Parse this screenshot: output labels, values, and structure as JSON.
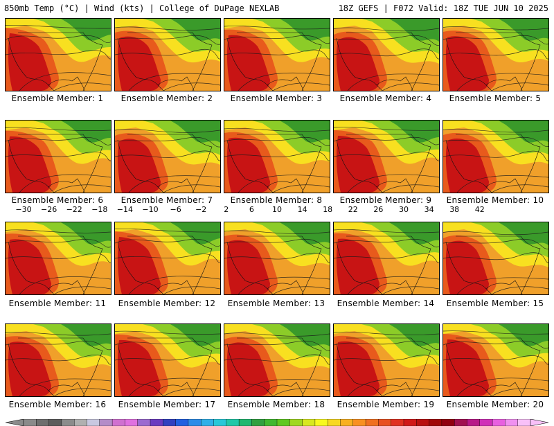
{
  "header": {
    "title_left": "850mb Temp (°C) | Wind (kts) | College of DuPage NEXLAB",
    "title_right": "18Z GEFS | F072 Valid: 18Z TUE JUN 10 2025"
  },
  "members": [
    {
      "label": "Ensemble Member: 1"
    },
    {
      "label": "Ensemble Member: 2"
    },
    {
      "label": "Ensemble Member: 3"
    },
    {
      "label": "Ensemble Member: 4"
    },
    {
      "label": "Ensemble Member: 5"
    },
    {
      "label": "Ensemble Member: 6"
    },
    {
      "label": "Ensemble Member: 7"
    },
    {
      "label": "Ensemble Member: 8"
    },
    {
      "label": "Ensemble Member: 9"
    },
    {
      "label": "Ensemble Member: 10"
    },
    {
      "label": "Ensemble Member: 11"
    },
    {
      "label": "Ensemble Member: 12"
    },
    {
      "label": "Ensemble Member: 13"
    },
    {
      "label": "Ensemble Member: 14"
    },
    {
      "label": "Ensemble Member: 15"
    },
    {
      "label": "Ensemble Member: 16"
    },
    {
      "label": "Ensemble Member: 17"
    },
    {
      "label": "Ensemble Member: 18"
    },
    {
      "label": "Ensemble Member: 19"
    },
    {
      "label": "Ensemble Member: 20"
    }
  ],
  "colorbar": {
    "labels": [
      "−30",
      "−26",
      "−22",
      "−18",
      "−14",
      "−10",
      "−6",
      "−2",
      "2",
      "6",
      "10",
      "14",
      "18",
      "22",
      "26",
      "30",
      "34",
      "38",
      "42"
    ],
    "colors": [
      "#8a8a8a",
      "#6e6e6e",
      "#5c5c5c",
      "#8c8c8c",
      "#b0b0b0",
      "#c8c8e0",
      "#b48cc8",
      "#d070d0",
      "#e070e0",
      "#9a6ad0",
      "#6a3ac0",
      "#3040c0",
      "#2060e0",
      "#2c8ce8",
      "#30b0e8",
      "#28c8d8",
      "#20c8a8",
      "#20b870",
      "#30a040",
      "#40b830",
      "#60c820",
      "#a0d820",
      "#d8e820",
      "#f8f820",
      "#f8d820",
      "#f8b020",
      "#f89020",
      "#f07020",
      "#e85020",
      "#e03020",
      "#d01818",
      "#b81010",
      "#a00808",
      "#900010",
      "#a01050",
      "#b81888",
      "#d030b8",
      "#e860e0",
      "#f090f0",
      "#f8c0f8"
    ]
  },
  "map_colors": {
    "hot": "#c81414",
    "warm": "#e85a1c",
    "mild": "#f0a02a",
    "cool": "#f8e020",
    "cold": "#8ccc28",
    "colder": "#3a9a2a"
  }
}
